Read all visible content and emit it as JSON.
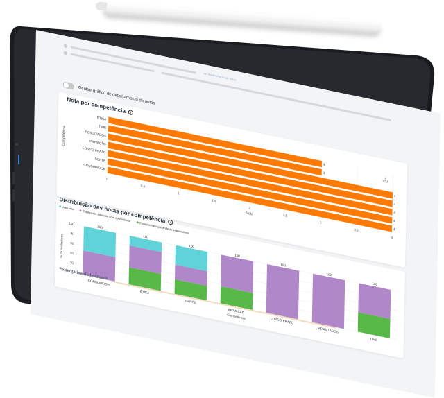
{
  "device": {
    "frame_color": "#1b1c1f",
    "screen_bg": "#f3f4f6"
  },
  "header": {
    "link_text": "ver detalhamento de notas"
  },
  "toggle": {
    "label": "Ocultar gráfico de detalhamento de notas",
    "state": "off"
  },
  "chart1": {
    "title": "Nota por competência",
    "info_icon": "info-icon",
    "download_icon": "download-icon"
  },
  "chart2": {
    "title": "Distribuição das notas por competência",
    "info_icon": "info-icon",
    "legend": [
      {
        "label": "Aderente",
        "color": "#5fd3d8"
      },
      {
        "label": "Totalmente aderente com consistência",
        "color": "#b088c9"
      },
      {
        "label": "Excepcional superando as expectativas",
        "color": "#58b948"
      }
    ]
  },
  "footer": {
    "title": "Expectativa de feedback"
  },
  "chart_data": [
    {
      "type": "bar",
      "orientation": "horizontal",
      "title": "Nota por competência",
      "xlabel": "Nota",
      "ylabel": "Competência",
      "categories": [
        "ÉTICA",
        "TIME",
        "RESULTADOS",
        "INOVAÇÃO",
        "LONGO PRAZO",
        "GENTE",
        "CONSUMIDOR"
      ],
      "values": [
        3,
        3,
        4,
        4,
        4,
        4,
        4
      ],
      "xlim": [
        0,
        4
      ],
      "xticks": [
        "0",
        "0,5",
        "1",
        "1,5",
        "2",
        "2,5",
        "3",
        "3,5",
        "4"
      ],
      "color": "#ff7a00",
      "grid": true
    },
    {
      "type": "bar",
      "stacked": true,
      "title": "Distribuição das notas por competência",
      "xlabel": "Competência",
      "ylabel": "% de avaliadores",
      "categories": [
        "CONSUMIDOR",
        "ÉTICA",
        "GENTE",
        "INOVAÇÃO",
        "LONGO PRAZO",
        "RESULTADOS",
        "TIME"
      ],
      "ylim": [
        0,
        100
      ],
      "yticks": [
        "0",
        "20",
        "40",
        "60",
        "80",
        "100"
      ],
      "totals": [
        "100",
        "100",
        "100",
        "100",
        "100",
        "100",
        "100"
      ],
      "series": [
        {
          "name": "Excepcional superando as expectativas",
          "color": "#58b948",
          "values": [
            0,
            35,
            30,
            35,
            0,
            0,
            40
          ]
        },
        {
          "name": "Totalmente aderente com consistência",
          "color": "#b088c9",
          "values": [
            50,
            45,
            30,
            65,
            100,
            100,
            60
          ]
        },
        {
          "name": "Aderente",
          "color": "#5fd3d8",
          "values": [
            50,
            20,
            40,
            0,
            0,
            0,
            0
          ]
        }
      ],
      "legend": "top-left",
      "grid": true
    }
  ]
}
